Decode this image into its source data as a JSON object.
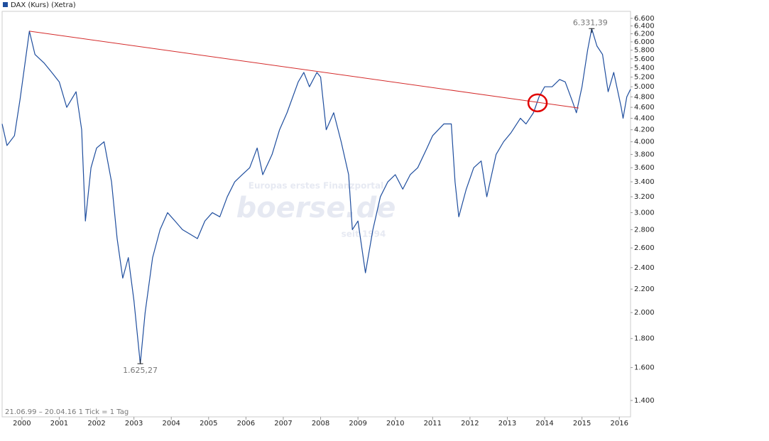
{
  "chart_data": {
    "type": "line",
    "legend": "DAX (Kurs) (Xetra)",
    "footer": "21.06.99 – 20.04.16   1 Tick = 1 Tag",
    "watermark": [
      "Europas erstes Finanzportal",
      "boerse.de",
      "seit 1994"
    ],
    "log_scale": true,
    "grid": false,
    "xlim": [
      1999.47,
      2016.3
    ],
    "xticks": [
      2000,
      2001,
      2002,
      2003,
      2004,
      2005,
      2006,
      2007,
      2008,
      2009,
      2010,
      2011,
      2012,
      2013,
      2014,
      2015,
      2016
    ],
    "ylim": [
      1310,
      6790
    ],
    "yticks": [
      {
        "value": 1400,
        "label": "1.400"
      },
      {
        "value": 1600,
        "label": "1.600"
      },
      {
        "value": 1800,
        "label": "1.800"
      },
      {
        "value": 2000,
        "label": "2.000"
      },
      {
        "value": 2200,
        "label": "2.200"
      },
      {
        "value": 2400,
        "label": "2.400"
      },
      {
        "value": 2600,
        "label": "2.600"
      },
      {
        "value": 2800,
        "label": "2.800"
      },
      {
        "value": 3000,
        "label": "3.000"
      },
      {
        "value": 3200,
        "label": "3.200"
      },
      {
        "value": 3400,
        "label": "3.400"
      },
      {
        "value": 3600,
        "label": "3.600"
      },
      {
        "value": 3800,
        "label": "3.800"
      },
      {
        "value": 4000,
        "label": "4.000"
      },
      {
        "value": 4200,
        "label": "4.200"
      },
      {
        "value": 4400,
        "label": "4.400"
      },
      {
        "value": 4600,
        "label": "4.600"
      },
      {
        "value": 4800,
        "label": "4.800"
      },
      {
        "value": 5000,
        "label": "5.000"
      },
      {
        "value": 5200,
        "label": "5.200"
      },
      {
        "value": 5400,
        "label": "5.400"
      },
      {
        "value": 5600,
        "label": "5.600"
      },
      {
        "value": 5800,
        "label": "5.800"
      },
      {
        "value": 6000,
        "label": "6.000"
      },
      {
        "value": 6200,
        "label": "6.200"
      },
      {
        "value": 6400,
        "label": "6.400"
      },
      {
        "value": 6600,
        "label": "6.600"
      }
    ],
    "x": [
      1999.47,
      1999.6,
      1999.8,
      1999.95,
      2000.2,
      2000.35,
      2000.6,
      2000.8,
      2001.0,
      2001.2,
      2001.45,
      2001.6,
      2001.7,
      2001.85,
      2002.0,
      2002.2,
      2002.4,
      2002.55,
      2002.7,
      2002.85,
      2003.0,
      2003.17,
      2003.3,
      2003.5,
      2003.7,
      2003.9,
      2004.1,
      2004.3,
      2004.5,
      2004.7,
      2004.9,
      2005.1,
      2005.3,
      2005.5,
      2005.7,
      2005.9,
      2006.1,
      2006.3,
      2006.45,
      2006.7,
      2006.9,
      2007.1,
      2007.4,
      2007.55,
      2007.7,
      2007.9,
      2008.0,
      2008.15,
      2008.35,
      2008.55,
      2008.75,
      2008.85,
      2009.0,
      2009.2,
      2009.4,
      2009.6,
      2009.8,
      2010.0,
      2010.2,
      2010.4,
      2010.6,
      2010.85,
      2011.0,
      2011.3,
      2011.5,
      2011.6,
      2011.7,
      2011.9,
      2012.1,
      2012.3,
      2012.45,
      2012.7,
      2012.9,
      2013.1,
      2013.35,
      2013.5,
      2013.7,
      2013.85,
      2014.0,
      2014.2,
      2014.4,
      2014.55,
      2014.75,
      2014.85,
      2015.0,
      2015.15,
      2015.26,
      2015.4,
      2015.55,
      2015.7,
      2015.85,
      2016.05,
      2016.1,
      2016.2,
      2016.3
    ],
    "series": [
      {
        "name": "DAX (Kurs) (Xetra)",
        "color": "#1f4e9e",
        "values": [
          4300,
          3940,
          4100,
          4750,
          6266,
          5700,
          5500,
          5300,
          5100,
          4600,
          4900,
          4200,
          2900,
          3600,
          3900,
          4000,
          3400,
          2700,
          2300,
          2500,
          2100,
          1625,
          2000,
          2500,
          2800,
          3000,
          2900,
          2800,
          2750,
          2700,
          2900,
          3000,
          2950,
          3200,
          3400,
          3500,
          3600,
          3900,
          3500,
          3800,
          4200,
          4500,
          5100,
          5300,
          5000,
          5300,
          5200,
          4200,
          4500,
          4000,
          3500,
          2800,
          2900,
          2350,
          2800,
          3200,
          3400,
          3500,
          3300,
          3500,
          3600,
          3900,
          4100,
          4300,
          4300,
          3400,
          2950,
          3300,
          3600,
          3700,
          3200,
          3800,
          4000,
          4150,
          4400,
          4300,
          4500,
          4800,
          5000,
          5000,
          5150,
          5100,
          4700,
          4500,
          5000,
          5800,
          6331,
          5900,
          5700,
          4900,
          5300,
          4600,
          4400,
          4800,
          4950
        ]
      }
    ],
    "annotations": [
      {
        "text": "6.331,39",
        "x": 2015.26,
        "y": 6331.39
      },
      {
        "text": "1.625,27",
        "x": 2003.17,
        "y": 1625.27
      }
    ],
    "trendline": {
      "color": "#d42a2a",
      "x": [
        2000.2,
        2014.91
      ],
      "y": [
        6266,
        4587
      ]
    },
    "highlight": {
      "color": "#e00000",
      "x": 2013.81,
      "y": 4684
    }
  }
}
